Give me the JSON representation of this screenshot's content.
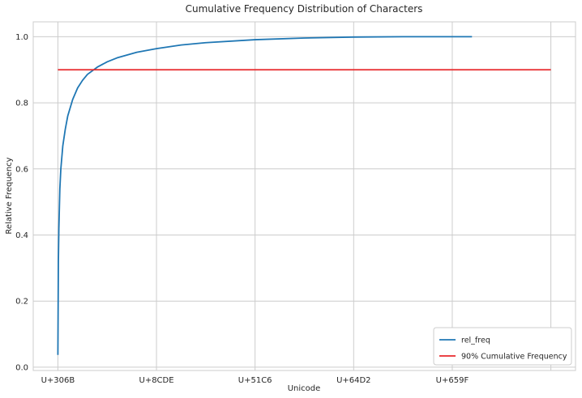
{
  "chart_data": {
    "type": "line",
    "title": "Cumulative Frequency Distribution of Characters",
    "xlabel": "Unicode",
    "ylabel": "Relative Frequency",
    "x_tick_labels": [
      "U+306B",
      "U+8CDE",
      "U+51C6",
      "U+64D2",
      "U+659F"
    ],
    "y_ticks": [
      0.0,
      0.2,
      0.4,
      0.6,
      0.8,
      1.0
    ],
    "y_tick_labels": [
      "0.0",
      "0.2",
      "0.4",
      "0.6",
      "0.8",
      "1.0"
    ],
    "xlim": [
      -250,
      5250
    ],
    "ylim": [
      -0.01,
      1.045
    ],
    "x_tick_positions": [
      0,
      1000,
      2000,
      3000,
      4000
    ],
    "grid": true,
    "legend_position": "lower-right",
    "series": [
      {
        "name": "rel_freq",
        "color": "#1f77b4",
        "x": [
          0,
          5,
          10,
          20,
          30,
          50,
          75,
          100,
          150,
          200,
          250,
          300,
          400,
          500,
          600,
          800,
          1000,
          1250,
          1500,
          2000,
          2500,
          3000,
          3500,
          4000,
          4200
        ],
        "y": [
          0.037,
          0.32,
          0.42,
          0.54,
          0.6,
          0.67,
          0.72,
          0.76,
          0.81,
          0.845,
          0.868,
          0.886,
          0.908,
          0.924,
          0.936,
          0.953,
          0.964,
          0.975,
          0.982,
          0.991,
          0.996,
          0.999,
          1.0,
          1.0,
          1.0
        ]
      },
      {
        "name": "90% Cumulative Frequency",
        "color": "#e8282b",
        "x": [
          0,
          5000
        ],
        "y": [
          0.9,
          0.9
        ]
      }
    ]
  }
}
